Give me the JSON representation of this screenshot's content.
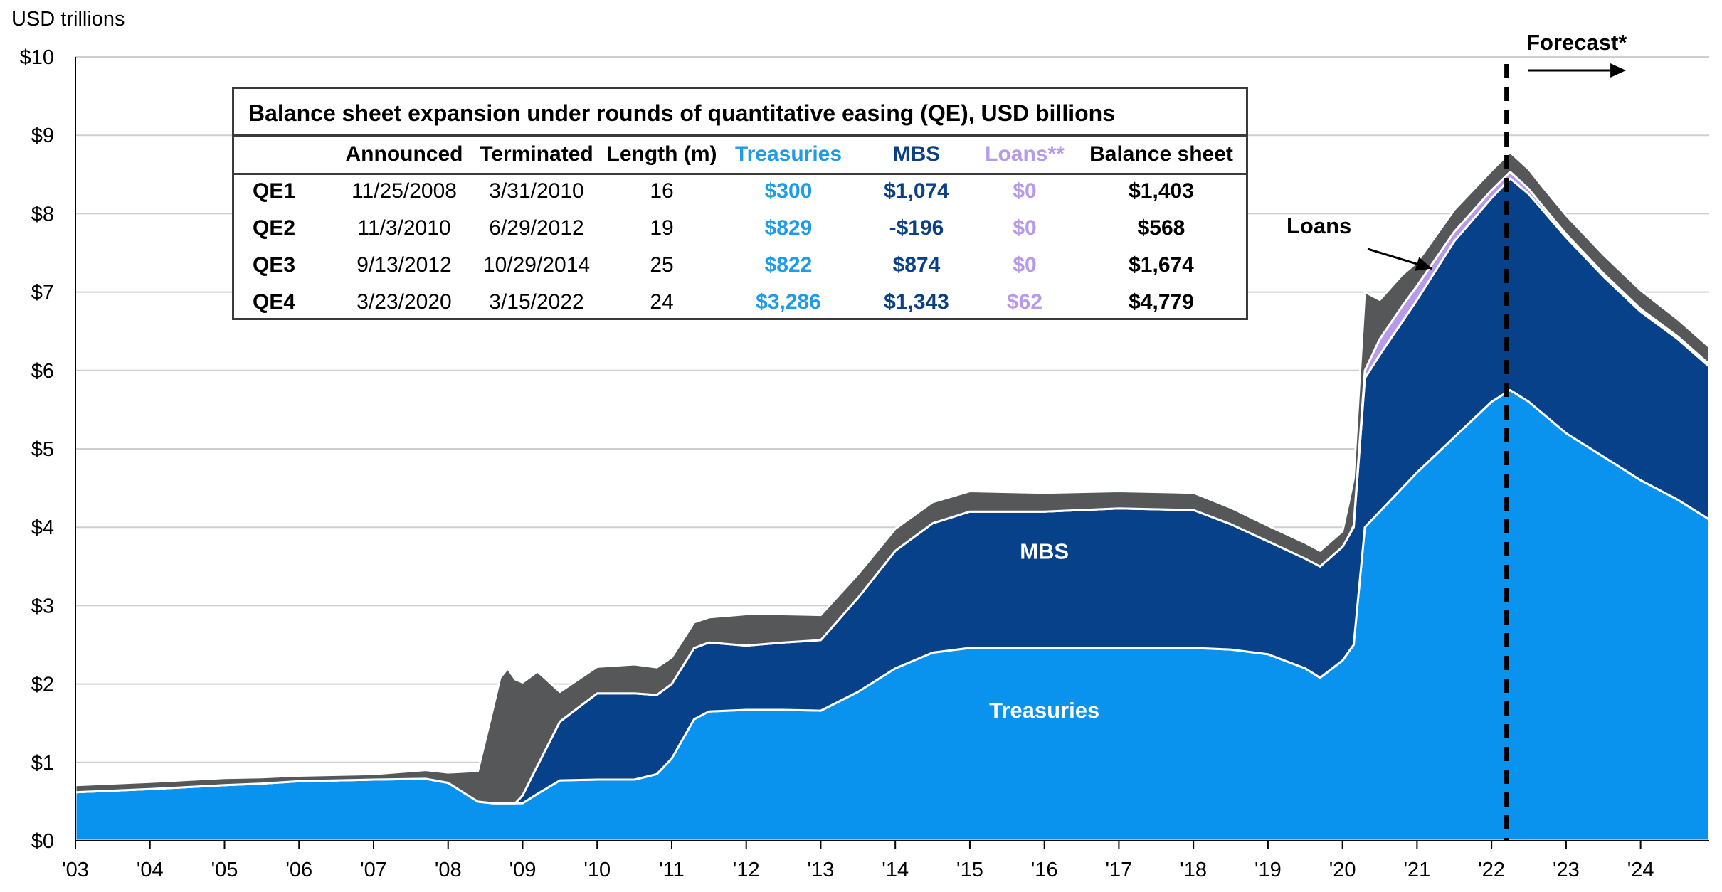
{
  "chart_data": {
    "type": "area",
    "stacked": true,
    "y_axis_title": "USD trillions",
    "ylim": [
      0,
      10
    ],
    "y_ticks": [
      "$0",
      "$1",
      "$2",
      "$3",
      "$4",
      "$5",
      "$6",
      "$7",
      "$8",
      "$9",
      "$10"
    ],
    "x_range": [
      2003,
      2024.92
    ],
    "x_ticks": [
      "'03",
      "'04",
      "'05",
      "'06",
      "'07",
      "'08",
      "'09",
      "'10",
      "'11",
      "'12",
      "'13",
      "'14",
      "'15",
      "'16",
      "'17",
      "'18",
      "'19",
      "'20",
      "'21",
      "'22",
      "'23",
      "'24"
    ],
    "grid": true,
    "colors": {
      "treasuries": "#0a93ee",
      "mbs": "#07418a",
      "loans": "#b79bea",
      "other": "#555759",
      "forecast_line": "#000000"
    },
    "series": [
      {
        "name": "Treasuries",
        "x": [
          2003.0,
          2004.0,
          2005.0,
          2005.5,
          2006.0,
          2007.0,
          2007.7,
          2008.0,
          2008.4,
          2008.6,
          2009.0,
          2009.2,
          2009.5,
          2010.0,
          2010.5,
          2010.8,
          2011.0,
          2011.3,
          2011.5,
          2012.0,
          2012.5,
          2013.0,
          2013.5,
          2014.0,
          2014.5,
          2015.0,
          2016.0,
          2017.0,
          2018.0,
          2018.5,
          2019.0,
          2019.5,
          2019.7,
          2020.0,
          2020.15,
          2020.3,
          2020.6,
          2021.0,
          2021.5,
          2022.0,
          2022.25,
          2022.5,
          2023.0,
          2023.5,
          2024.0,
          2024.5,
          2024.92
        ],
        "values": [
          0.62,
          0.66,
          0.71,
          0.73,
          0.76,
          0.78,
          0.79,
          0.74,
          0.5,
          0.48,
          0.48,
          0.6,
          0.77,
          0.78,
          0.78,
          0.85,
          1.05,
          1.55,
          1.65,
          1.67,
          1.67,
          1.66,
          1.9,
          2.2,
          2.4,
          2.46,
          2.46,
          2.46,
          2.46,
          2.44,
          2.38,
          2.2,
          2.08,
          2.3,
          2.5,
          4.0,
          4.3,
          4.7,
          5.15,
          5.6,
          5.75,
          5.6,
          5.2,
          4.9,
          4.6,
          4.35,
          4.1
        ]
      },
      {
        "name": "MBS",
        "x": [
          2003.0,
          2008.9,
          2009.0,
          2009.5,
          2010.0,
          2010.5,
          2011.0,
          2011.5,
          2012.0,
          2013.0,
          2013.5,
          2014.0,
          2014.5,
          2015.0,
          2016.0,
          2017.0,
          2018.0,
          2019.0,
          2019.5,
          2020.0,
          2020.15,
          2020.3,
          2020.5,
          2021.0,
          2021.5,
          2022.0,
          2022.25,
          2022.5,
          2023.0,
          2023.5,
          2024.0,
          2024.5,
          2024.92
        ],
        "values": [
          0,
          0,
          0.1,
          0.75,
          1.1,
          1.1,
          0.95,
          0.88,
          0.82,
          0.9,
          1.2,
          1.5,
          1.65,
          1.74,
          1.74,
          1.78,
          1.76,
          1.44,
          1.4,
          1.45,
          1.5,
          1.9,
          2.0,
          2.2,
          2.5,
          2.6,
          2.7,
          2.65,
          2.5,
          2.3,
          2.15,
          2.05,
          1.95
        ]
      },
      {
        "name": "Loans",
        "x": [
          2003.0,
          2020.1,
          2020.3,
          2020.5,
          2020.8,
          2021.0,
          2021.5,
          2022.0,
          2022.3,
          2022.7,
          2023.0,
          2024.92
        ],
        "values": [
          0,
          0,
          0.1,
          0.2,
          0.2,
          0.18,
          0.12,
          0.1,
          0.08,
          0.05,
          0.04,
          0.03
        ]
      },
      {
        "name": "Other",
        "x": [
          2003.0,
          2004.0,
          2005.0,
          2006.0,
          2007.0,
          2008.0,
          2008.4,
          2008.7,
          2008.8,
          2009.0,
          2009.2,
          2009.5,
          2010.0,
          2010.5,
          2011.0,
          2011.5,
          2012.0,
          2013.0,
          2013.5,
          2014.0,
          2015.0,
          2016.0,
          2017.0,
          2018.0,
          2019.0,
          2019.7,
          2020.0,
          2020.3,
          2020.5,
          2020.8,
          2021.0,
          2021.5,
          2022.0,
          2022.5,
          2023.0,
          2023.5,
          2024.0,
          2024.5,
          2024.92
        ],
        "values": [
          0.09,
          0.09,
          0.09,
          0.07,
          0.07,
          0.13,
          0.39,
          1.6,
          1.72,
          1.44,
          1.2,
          0.38,
          0.34,
          0.37,
          0.34,
          0.32,
          0.4,
          0.32,
          0.3,
          0.28,
          0.26,
          0.24,
          0.22,
          0.22,
          0.2,
          0.2,
          0.2,
          1.0,
          0.5,
          0.4,
          0.3,
          0.28,
          0.25,
          0.25,
          0.24,
          0.24,
          0.24,
          0.22,
          0.22
        ]
      }
    ],
    "annotations": {
      "treasuries_label": "Treasuries",
      "mbs_label": "MBS",
      "loans_label": "Loans",
      "forecast_label": "Forecast*"
    },
    "forecast_start": 2022.2
  },
  "table": {
    "title": "Balance sheet expansion under rounds of quantitative easing (QE), USD billions",
    "headers": [
      "",
      "Announced",
      "Terminated",
      "Length (m)",
      "Treasuries",
      "MBS",
      "Loans**",
      "Balance sheet"
    ],
    "rows": [
      {
        "label": "QE1",
        "announced": "11/25/2008",
        "terminated": "3/31/2010",
        "length": "16",
        "treasuries": "$300",
        "mbs": "$1,074",
        "loans": "$0",
        "balance": "$1,403"
      },
      {
        "label": "QE2",
        "announced": "11/3/2010",
        "terminated": "6/29/2012",
        "length": "19",
        "treasuries": "$829",
        "mbs": "-$196",
        "loans": "$0",
        "balance": "$568"
      },
      {
        "label": "QE3",
        "announced": "9/13/2012",
        "terminated": "10/29/2014",
        "length": "25",
        "treasuries": "$822",
        "mbs": "$874",
        "loans": "$0",
        "balance": "$1,674"
      },
      {
        "label": "QE4",
        "announced": "3/23/2020",
        "terminated": "3/15/2022",
        "length": "24",
        "treasuries": "$3,286",
        "mbs": "$1,343",
        "loans": "$62",
        "balance": "$4,779"
      }
    ]
  }
}
